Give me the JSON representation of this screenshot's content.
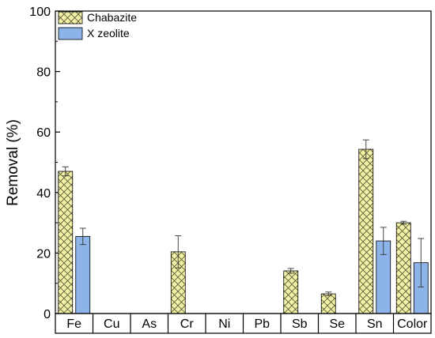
{
  "chart_data": {
    "type": "bar",
    "title": "",
    "xlabel": "",
    "ylabel": "Removal (%)",
    "ylim": [
      0,
      100
    ],
    "yticks": [
      "0",
      "20",
      "40",
      "60",
      "80",
      "100"
    ],
    "categories": [
      "Fe",
      "Cu",
      "As",
      "Cr",
      "Ni",
      "Pb",
      "Sb",
      "Se",
      "Sn",
      "Color"
    ],
    "legend_position": "top-left",
    "grid": false,
    "series": [
      {
        "name": "Chabazite",
        "color": "#f3f1a6",
        "pattern": "crosshatch",
        "values": [
          47.0,
          null,
          null,
          20.4,
          null,
          null,
          14.1,
          6.5,
          54.3,
          30.0
        ],
        "errors": [
          1.5,
          null,
          null,
          5.3,
          null,
          null,
          0.8,
          0.6,
          3.1,
          0.5
        ]
      },
      {
        "name": "X zeolite",
        "color": "#8db4e8",
        "pattern": "solid",
        "values": [
          25.5,
          null,
          null,
          null,
          null,
          null,
          null,
          null,
          24.0,
          16.8
        ],
        "errors": [
          2.7,
          null,
          null,
          null,
          null,
          null,
          null,
          null,
          4.5,
          8.0
        ]
      }
    ]
  }
}
